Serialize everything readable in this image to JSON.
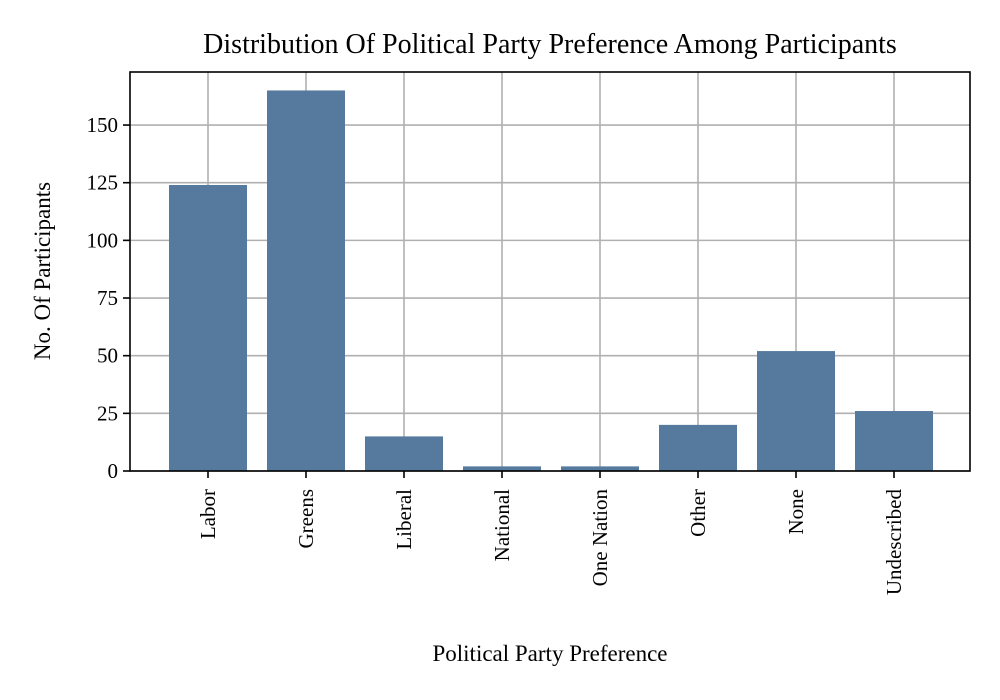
{
  "chart_data": {
    "type": "bar",
    "title": "Distribution Of Political Party Preference Among Participants",
    "xlabel": "Political Party Preference",
    "ylabel": "No. Of Participants",
    "categories": [
      "Labor",
      "Greens",
      "Liberal",
      "National",
      "One Nation",
      "Other",
      "None",
      "Undescribed"
    ],
    "values": [
      124,
      165,
      15,
      2,
      2,
      20,
      52,
      26
    ],
    "yticks": [
      0,
      25,
      50,
      75,
      100,
      125,
      150
    ],
    "ylim": [
      0,
      173
    ],
    "grid": true,
    "bar_color": "#557a9e",
    "grid_color": "#b0b0b0"
  }
}
